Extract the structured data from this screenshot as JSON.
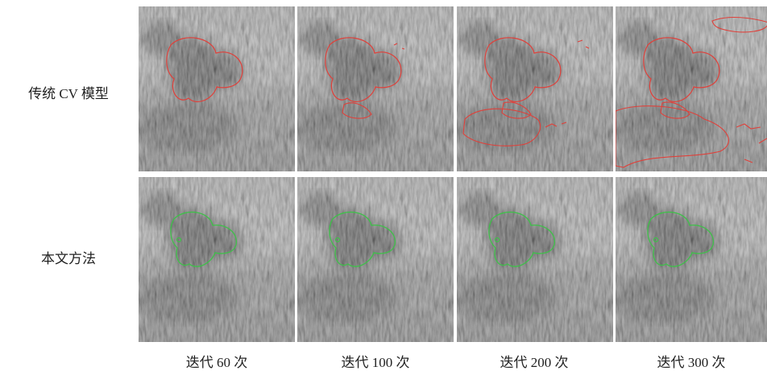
{
  "row_labels": [
    "传统 CV 模型",
    "本文方法"
  ],
  "column_labels": [
    "迭代 60 次",
    "迭代 100 次",
    "迭代 200 次",
    "迭代 300 次"
  ]
}
